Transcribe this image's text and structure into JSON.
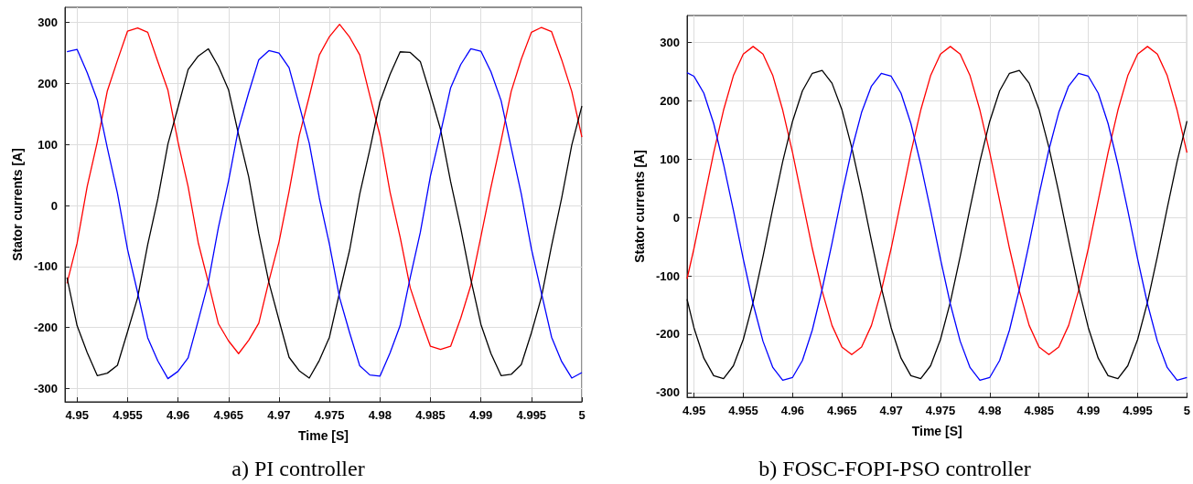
{
  "chart_data": [
    {
      "type": "line",
      "title": "a) PI controller",
      "xlabel": "Time [S]",
      "ylabel": "Stator currents [A]",
      "xlim": [
        4.9488,
        5
      ],
      "ylim": [
        -322,
        325
      ],
      "xticks": [
        4.95,
        4.955,
        4.96,
        4.965,
        4.97,
        4.975,
        4.98,
        4.985,
        4.99,
        4.995,
        5
      ],
      "yticks": [
        -300,
        -200,
        -100,
        0,
        100,
        200,
        300
      ],
      "grid": true,
      "marker": "none",
      "line_style": "solid",
      "x": [
        4.949,
        4.95,
        4.951,
        4.952,
        4.953,
        4.954,
        4.955,
        4.956,
        4.957,
        4.958,
        4.959,
        4.96,
        4.961,
        4.962,
        4.963,
        4.964,
        4.965,
        4.966,
        4.967,
        4.968,
        4.969,
        4.97,
        4.971,
        4.972,
        4.973,
        4.974,
        4.975,
        4.976,
        4.977,
        4.978,
        4.979,
        4.98,
        4.981,
        4.982,
        4.983,
        4.984,
        4.985,
        4.986,
        4.987,
        4.988,
        4.989,
        4.99,
        4.991,
        4.992,
        4.993,
        4.994,
        4.995,
        4.996,
        4.997,
        4.998,
        4.999,
        5
      ],
      "series": [
        {
          "color": "#ff0000",
          "values": [
            -128,
            -62,
            31,
            104,
            188,
            238,
            286,
            291,
            284,
            236,
            189,
            104,
            31,
            -61,
            -126,
            -194,
            -222,
            -243,
            -221,
            -193,
            -124,
            -60,
            23,
            114,
            179,
            247,
            277,
            297,
            276,
            247,
            180,
            115,
            22,
            -52,
            -135,
            -185,
            -231,
            -236,
            -231,
            -185,
            -131,
            -51,
            30,
            106,
            187,
            240,
            284,
            292,
            285,
            239,
            187,
            112
          ]
        },
        {
          "color": "#000000",
          "values": [
            -118,
            -197,
            -241,
            -279,
            -275,
            -262,
            -207,
            -151,
            -64,
            11,
            101,
            161,
            223,
            245,
            257,
            228,
            190,
            116,
            47,
            -46,
            -126,
            -188,
            -249,
            -271,
            -283,
            -254,
            -216,
            -143,
            -73,
            19,
            92,
            170,
            215,
            252,
            251,
            236,
            182,
            125,
            39,
            -37,
            -121,
            -195,
            -243,
            -279,
            -277,
            -261,
            -209,
            -150,
            -66,
            12,
            99,
            163
          ]
        },
        {
          "color": "#0000ff",
          "values": [
            252,
            256,
            218,
            173,
            94,
            20,
            -72,
            -143,
            -217,
            -255,
            -284,
            -272,
            -250,
            -189,
            -126,
            -36,
            40,
            127,
            185,
            239,
            254,
            250,
            226,
            165,
            102,
            12,
            -64,
            -151,
            -209,
            -263,
            -278,
            -280,
            -242,
            -197,
            -118,
            -44,
            48,
            119,
            193,
            231,
            257,
            253,
            219,
            172,
            95,
            19,
            -71,
            -144,
            -216,
            -256,
            -283,
            -274
          ]
        }
      ]
    },
    {
      "type": "line",
      "title": "b) FOSC-FOPI-PSO controller",
      "xlabel": "Time [S]",
      "ylabel": "Stator currents [A]",
      "xlim": [
        4.9493,
        5
      ],
      "ylim": [
        -308,
        346
      ],
      "xticks": [
        4.95,
        4.955,
        4.96,
        4.965,
        4.97,
        4.975,
        4.98,
        4.985,
        4.99,
        4.995,
        5
      ],
      "yticks": [
        -300,
        -200,
        -100,
        0,
        100,
        200,
        300
      ],
      "grid": true,
      "marker": "none",
      "line_style": "solid",
      "x": [
        4.9493,
        4.95,
        4.951,
        4.952,
        4.953,
        4.954,
        4.955,
        4.956,
        4.957,
        4.958,
        4.959,
        4.96,
        4.961,
        4.962,
        4.963,
        4.964,
        4.965,
        4.966,
        4.967,
        4.968,
        4.969,
        4.97,
        4.971,
        4.972,
        4.973,
        4.974,
        4.975,
        4.976,
        4.977,
        4.978,
        4.979,
        4.98,
        4.981,
        4.982,
        4.983,
        4.984,
        4.985,
        4.986,
        4.987,
        4.988,
        4.989,
        4.99,
        4.991,
        4.992,
        4.993,
        4.994,
        4.995,
        4.996,
        4.997,
        4.998,
        4.999,
        5
      ],
      "series": [
        {
          "color": "#ff0000",
          "values": [
            -105,
            -53,
            29,
            111,
            184,
            243,
            280,
            293,
            280,
            243,
            184,
            111,
            29,
            -53,
            -126,
            -185,
            -222,
            -235,
            -222,
            -185,
            -126,
            -53,
            29,
            111,
            184,
            243,
            280,
            293,
            280,
            243,
            184,
            111,
            29,
            -53,
            -126,
            -185,
            -222,
            -235,
            -222,
            -185,
            -126,
            -53,
            29,
            111,
            184,
            243,
            280,
            293,
            280,
            243,
            184,
            111
          ]
        },
        {
          "color": "#000000",
          "values": [
            -140,
            -189,
            -241,
            -271,
            -276,
            -254,
            -209,
            -145,
            -67,
            16,
            96,
            165,
            217,
            247,
            252,
            230,
            185,
            120,
            43,
            -40,
            -120,
            -189,
            -241,
            -271,
            -276,
            -254,
            -209,
            -145,
            -67,
            16,
            96,
            165,
            217,
            247,
            252,
            230,
            185,
            120,
            43,
            -40,
            -120,
            -189,
            -241,
            -271,
            -276,
            -254,
            -209,
            -145,
            -67,
            16,
            96,
            165
          ]
        },
        {
          "color": "#0000ff",
          "values": [
            248,
            242,
            213,
            161,
            91,
            12,
            -71,
            -148,
            -212,
            -257,
            -279,
            -274,
            -245,
            -193,
            -123,
            -44,
            39,
            116,
            180,
            225,
            247,
            242,
            213,
            161,
            91,
            12,
            -71,
            -148,
            -212,
            -257,
            -279,
            -274,
            -245,
            -193,
            -123,
            -44,
            39,
            116,
            180,
            225,
            247,
            242,
            213,
            161,
            91,
            12,
            -71,
            -148,
            -212,
            -257,
            -279,
            -274
          ]
        }
      ]
    }
  ]
}
